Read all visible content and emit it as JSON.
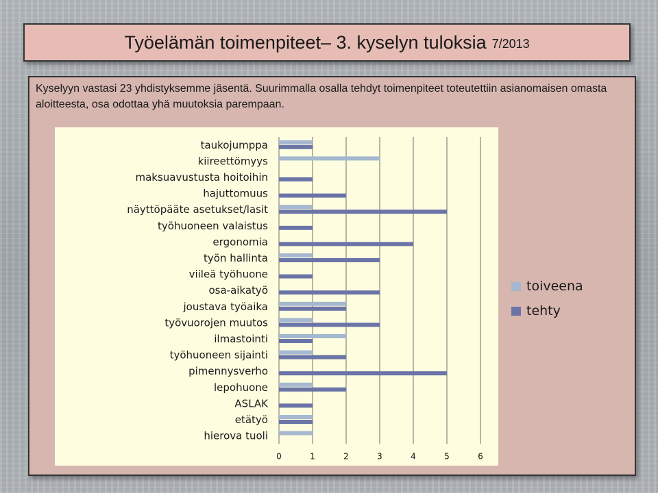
{
  "header": {
    "title": "Työelämän toimenpiteet– 3. kyselyn tuloksia",
    "date": "7/2013"
  },
  "intro": {
    "text": "Kyselyyn vastasi 23 yhdistyksemme jäsentä. Suurimmalla osalla tehdyt toimenpiteet toteutettiin asianomaisen omasta aloitteesta, osa odottaa yhä muutoksia parempaan."
  },
  "colors": {
    "toiveena": "#a5b8d0",
    "tehty": "#6b74a6",
    "plot_bg": "#fffde0",
    "grid": "#6e6e6e"
  },
  "chart_data": {
    "type": "bar",
    "orientation": "horizontal",
    "categories": [
      "taukojumppa",
      "kiireettömyys",
      "maksuavustusta hoitoihin",
      "hajuttomuus",
      "näyttöpääte asetukset/lasit",
      "työhuoneen valaistus",
      "ergonomia",
      "työn hallinta",
      "viileä työhuone",
      "osa-aikatyö",
      "joustava työaika",
      "työvuorojen muutos",
      "ilmastointi",
      "työhuoneen sijainti",
      "pimennysverho",
      "lepohuone",
      "ASLAK",
      "etätyö",
      "hierova tuoli"
    ],
    "series": [
      {
        "name": "toiveena",
        "values": [
          1,
          3,
          0,
          0,
          1,
          0,
          0,
          1,
          0,
          0,
          2,
          1,
          2,
          1,
          0,
          1,
          0,
          1,
          1
        ]
      },
      {
        "name": "tehty",
        "values": [
          1,
          0,
          1,
          2,
          5,
          1,
          4,
          3,
          1,
          3,
          2,
          3,
          1,
          2,
          5,
          2,
          1,
          1,
          0
        ]
      }
    ],
    "xlim": [
      0,
      6
    ],
    "xticks": [
      "0",
      "1",
      "2",
      "3",
      "4",
      "5",
      "6"
    ],
    "grid": true,
    "legend_position": "right"
  }
}
